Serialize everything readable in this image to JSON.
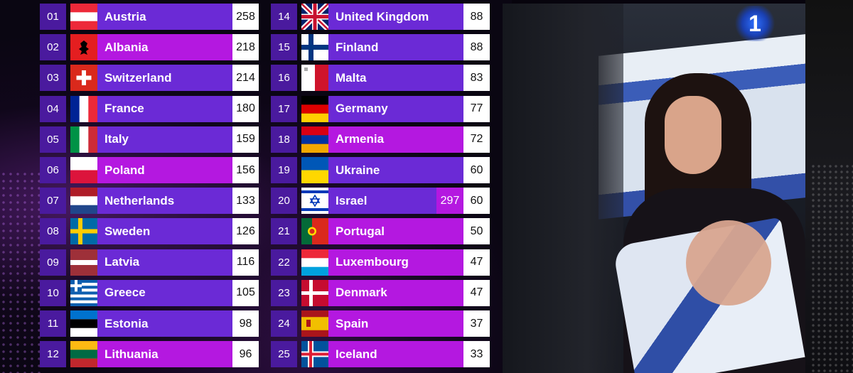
{
  "scoreboard": {
    "left": [
      {
        "pos": "01",
        "country": "Austria",
        "points": "258",
        "flag": "austria",
        "bar": "purple"
      },
      {
        "pos": "02",
        "country": "Albania",
        "points": "218",
        "flag": "albania",
        "bar": "magenta"
      },
      {
        "pos": "03",
        "country": "Switzerland",
        "points": "214",
        "flag": "switzerland",
        "bar": "purple"
      },
      {
        "pos": "04",
        "country": "France",
        "points": "180",
        "flag": "france",
        "bar": "purple"
      },
      {
        "pos": "05",
        "country": "Italy",
        "points": "159",
        "flag": "italy",
        "bar": "purple"
      },
      {
        "pos": "06",
        "country": "Poland",
        "points": "156",
        "flag": "poland",
        "bar": "magenta"
      },
      {
        "pos": "07",
        "country": "Netherlands",
        "points": "133",
        "flag": "netherlands",
        "bar": "purple"
      },
      {
        "pos": "08",
        "country": "Sweden",
        "points": "126",
        "flag": "sweden",
        "bar": "purple"
      },
      {
        "pos": "09",
        "country": "Latvia",
        "points": "116",
        "flag": "latvia",
        "bar": "purple"
      },
      {
        "pos": "10",
        "country": "Greece",
        "points": "105",
        "flag": "greece",
        "bar": "purple"
      },
      {
        "pos": "11",
        "country": "Estonia",
        "points": "98",
        "flag": "estonia",
        "bar": "purple"
      },
      {
        "pos": "12",
        "country": "Lithuania",
        "points": "96",
        "flag": "lithuania",
        "bar": "magenta"
      }
    ],
    "right": [
      {
        "pos": "14",
        "country": "United Kingdom",
        "points": "88",
        "flag": "uk",
        "bar": "purple"
      },
      {
        "pos": "15",
        "country": "Finland",
        "points": "88",
        "flag": "finland",
        "bar": "purple"
      },
      {
        "pos": "16",
        "country": "Malta",
        "points": "83",
        "flag": "malta",
        "bar": "purple"
      },
      {
        "pos": "17",
        "country": "Germany",
        "points": "77",
        "flag": "germany",
        "bar": "purple"
      },
      {
        "pos": "18",
        "country": "Armenia",
        "points": "72",
        "flag": "armenia",
        "bar": "magenta"
      },
      {
        "pos": "19",
        "country": "Ukraine",
        "points": "60",
        "flag": "ukraine",
        "bar": "purple"
      },
      {
        "pos": "20",
        "country": "Israel",
        "points": "60",
        "jury": "297",
        "flag": "israel",
        "bar": "purple"
      },
      {
        "pos": "21",
        "country": "Portugal",
        "points": "50",
        "flag": "portugal",
        "bar": "magenta"
      },
      {
        "pos": "22",
        "country": "Luxembourg",
        "points": "47",
        "flag": "luxembourg",
        "bar": "magenta"
      },
      {
        "pos": "23",
        "country": "Denmark",
        "points": "47",
        "flag": "denmark",
        "bar": "magenta"
      },
      {
        "pos": "24",
        "country": "Spain",
        "points": "37",
        "flag": "spain",
        "bar": "magenta"
      },
      {
        "pos": "25",
        "country": "Iceland",
        "points": "33",
        "flag": "iceland",
        "bar": "magenta"
      }
    ]
  },
  "broadcast": {
    "channel_logo": "1"
  },
  "colors": {
    "purple": "#6b2ad6",
    "magenta": "#b418e0",
    "number_box": "#4a1a9e"
  }
}
